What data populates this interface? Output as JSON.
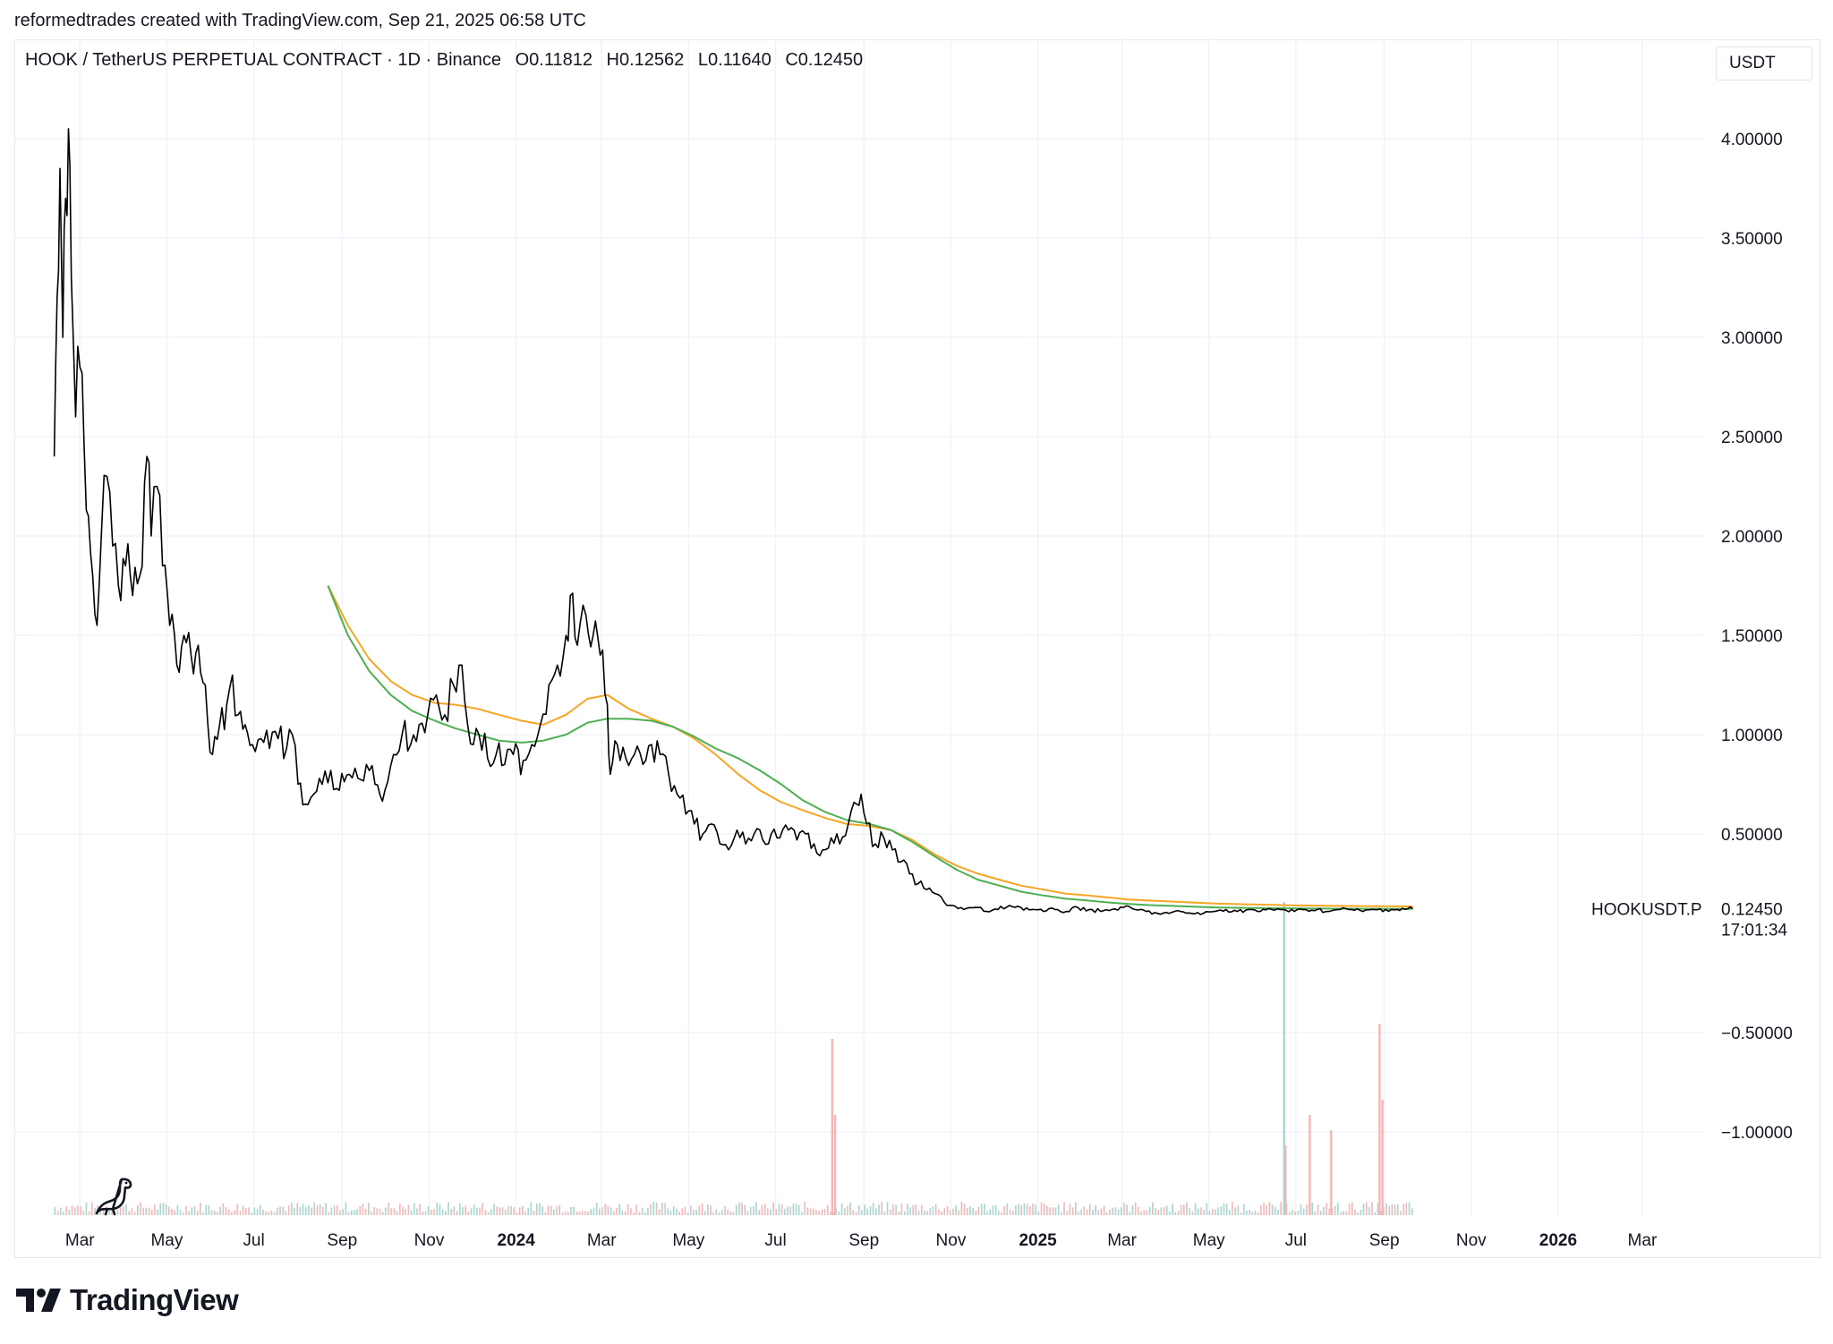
{
  "header": {
    "attribution": "reformedtrades created with TradingView.com, Sep 21, 2025 06:58 UTC"
  },
  "legend": {
    "symbol": "HOOK / TetherUS PERPETUAL CONTRACT · 1D · Binance",
    "open": "O0.11812",
    "high": "H0.12562",
    "low": "L0.11640",
    "close": "C0.12450"
  },
  "toolbar": {
    "currency": "USDT"
  },
  "footer": {
    "brand": "TradingView"
  },
  "colors": {
    "price": "#000000",
    "ma_orange": "#f5a623",
    "ma_green": "#4caf50",
    "grid": "#f0f3fa",
    "volume_up": "#a5d6cf",
    "volume_down": "#f7b6b6"
  },
  "chart_data": {
    "type": "line",
    "series": [
      {
        "name": "HOOKUSDT.P"
      }
    ],
    "price_label": {
      "symbol": "HOOKUSDT.P",
      "value": "0.12450",
      "countdown": "17:01:34"
    },
    "y_ticks": [
      "4.00000",
      "3.50000",
      "3.00000",
      "2.50000",
      "2.00000",
      "1.50000",
      "1.00000",
      "0.50000",
      "−0.50000",
      "−1.00000"
    ],
    "y_tick_values": [
      4.0,
      3.5,
      3.0,
      2.5,
      2.0,
      1.5,
      1.0,
      0.5,
      -0.5,
      -1.0
    ],
    "ylim": [
      -1.45,
      4.5
    ],
    "x_ticks": [
      {
        "label": "Mar",
        "t": "2023-03-01",
        "bold": false
      },
      {
        "label": "May",
        "t": "2023-05-01",
        "bold": false
      },
      {
        "label": "Jul",
        "t": "2023-07-01",
        "bold": false
      },
      {
        "label": "Sep",
        "t": "2023-09-01",
        "bold": false
      },
      {
        "label": "Nov",
        "t": "2023-11-01",
        "bold": false
      },
      {
        "label": "2024",
        "t": "2024-01-01",
        "bold": true
      },
      {
        "label": "Mar",
        "t": "2024-03-01",
        "bold": false
      },
      {
        "label": "May",
        "t": "2024-05-01",
        "bold": false
      },
      {
        "label": "Jul",
        "t": "2024-07-01",
        "bold": false
      },
      {
        "label": "Sep",
        "t": "2024-09-01",
        "bold": false
      },
      {
        "label": "Nov",
        "t": "2024-11-01",
        "bold": false
      },
      {
        "label": "2025",
        "t": "2025-01-01",
        "bold": true
      },
      {
        "label": "Mar",
        "t": "2025-03-01",
        "bold": false
      },
      {
        "label": "May",
        "t": "2025-05-01",
        "bold": false
      },
      {
        "label": "Jul",
        "t": "2025-07-01",
        "bold": false
      },
      {
        "label": "Sep",
        "t": "2025-09-01",
        "bold": false
      },
      {
        "label": "Nov",
        "t": "2025-11-01",
        "bold": false
      },
      {
        "label": "2026",
        "t": "2026-01-01",
        "bold": true
      },
      {
        "label": "Mar",
        "t": "2026-03-01",
        "bold": false
      }
    ],
    "price": [
      [
        "2023-02-11",
        2.4
      ],
      [
        "2023-02-13",
        3.2
      ],
      [
        "2023-02-15",
        3.85
      ],
      [
        "2023-02-17",
        3.0
      ],
      [
        "2023-02-19",
        3.7
      ],
      [
        "2023-02-21",
        4.05
      ],
      [
        "2023-02-23",
        3.3
      ],
      [
        "2023-02-26",
        2.6
      ],
      [
        "2023-03-01",
        2.85
      ],
      [
        "2023-03-04",
        2.45
      ],
      [
        "2023-03-07",
        2.1
      ],
      [
        "2023-03-10",
        1.8
      ],
      [
        "2023-03-13",
        1.55
      ],
      [
        "2023-03-16",
        2.0
      ],
      [
        "2023-03-20",
        2.3
      ],
      [
        "2023-03-24",
        1.95
      ],
      [
        "2023-03-28",
        1.75
      ],
      [
        "2023-04-02",
        1.85
      ],
      [
        "2023-04-07",
        1.7
      ],
      [
        "2023-04-12",
        1.8
      ],
      [
        "2023-04-17",
        2.4
      ],
      [
        "2023-04-20",
        2.0
      ],
      [
        "2023-04-24",
        2.25
      ],
      [
        "2023-04-28",
        1.85
      ],
      [
        "2023-05-03",
        1.55
      ],
      [
        "2023-05-08",
        1.35
      ],
      [
        "2023-05-13",
        1.5
      ],
      [
        "2023-05-18",
        1.4
      ],
      [
        "2023-05-23",
        1.45
      ],
      [
        "2023-05-28",
        1.25
      ],
      [
        "2023-06-02",
        0.9
      ],
      [
        "2023-06-07",
        1.05
      ],
      [
        "2023-06-12",
        1.15
      ],
      [
        "2023-06-16",
        1.3
      ],
      [
        "2023-06-20",
        1.1
      ],
      [
        "2023-06-25",
        1.05
      ],
      [
        "2023-06-30",
        0.95
      ],
      [
        "2023-07-06",
        0.98
      ],
      [
        "2023-07-12",
        0.93
      ],
      [
        "2023-07-18",
        0.98
      ],
      [
        "2023-07-24",
        0.93
      ],
      [
        "2023-07-28",
        1.0
      ],
      [
        "2023-08-01",
        0.75
      ],
      [
        "2023-08-06",
        0.65
      ],
      [
        "2023-08-12",
        0.7
      ],
      [
        "2023-08-18",
        0.75
      ],
      [
        "2023-08-24",
        0.82
      ],
      [
        "2023-08-30",
        0.72
      ],
      [
        "2023-09-06",
        0.8
      ],
      [
        "2023-09-12",
        0.78
      ],
      [
        "2023-09-18",
        0.85
      ],
      [
        "2023-09-24",
        0.75
      ],
      [
        "2023-10-01",
        0.72
      ],
      [
        "2023-10-07",
        0.9
      ],
      [
        "2023-10-13",
        1.0
      ],
      [
        "2023-10-19",
        0.95
      ],
      [
        "2023-10-25",
        1.05
      ],
      [
        "2023-10-31",
        1.1
      ],
      [
        "2023-11-06",
        1.2
      ],
      [
        "2023-11-12",
        1.1
      ],
      [
        "2023-11-18",
        1.25
      ],
      [
        "2023-11-24",
        1.35
      ],
      [
        "2023-11-28",
        1.05
      ],
      [
        "2023-12-02",
        0.95
      ],
      [
        "2023-12-06",
        1.0
      ],
      [
        "2023-12-12",
        0.88
      ],
      [
        "2023-12-18",
        0.9
      ],
      [
        "2023-12-24",
        0.85
      ],
      [
        "2023-12-30",
        0.9
      ],
      [
        "2024-01-06",
        0.87
      ],
      [
        "2024-01-12",
        0.95
      ],
      [
        "2024-01-18",
        1.05
      ],
      [
        "2024-01-24",
        1.25
      ],
      [
        "2024-01-30",
        1.35
      ],
      [
        "2024-02-05",
        1.5
      ],
      [
        "2024-02-08",
        1.7
      ],
      [
        "2024-02-13",
        1.45
      ],
      [
        "2024-02-19",
        1.6
      ],
      [
        "2024-02-24",
        1.5
      ],
      [
        "2024-02-29",
        1.4
      ],
      [
        "2024-03-05",
        1.15
      ],
      [
        "2024-03-07",
        0.8
      ],
      [
        "2024-03-12",
        0.95
      ],
      [
        "2024-03-18",
        0.88
      ],
      [
        "2024-03-24",
        0.9
      ],
      [
        "2024-03-30",
        0.85
      ],
      [
        "2024-04-05",
        0.95
      ],
      [
        "2024-04-11",
        0.9
      ],
      [
        "2024-04-17",
        0.8
      ],
      [
        "2024-04-23",
        0.7
      ],
      [
        "2024-04-29",
        0.6
      ],
      [
        "2024-05-05",
        0.55
      ],
      [
        "2024-05-11",
        0.5
      ],
      [
        "2024-05-17",
        0.55
      ],
      [
        "2024-05-23",
        0.45
      ],
      [
        "2024-05-29",
        0.42
      ],
      [
        "2024-06-04",
        0.52
      ],
      [
        "2024-06-10",
        0.45
      ],
      [
        "2024-06-16",
        0.5
      ],
      [
        "2024-06-22",
        0.47
      ],
      [
        "2024-06-28",
        0.5
      ],
      [
        "2024-07-04",
        0.48
      ],
      [
        "2024-07-10",
        0.52
      ],
      [
        "2024-07-16",
        0.47
      ],
      [
        "2024-07-22",
        0.5
      ],
      [
        "2024-07-28",
        0.45
      ],
      [
        "2024-08-03",
        0.42
      ],
      [
        "2024-08-09",
        0.48
      ],
      [
        "2024-08-15",
        0.45
      ],
      [
        "2024-08-21",
        0.55
      ],
      [
        "2024-08-27",
        0.65
      ],
      [
        "2024-08-30",
        0.7
      ],
      [
        "2024-09-03",
        0.55
      ],
      [
        "2024-09-09",
        0.45
      ],
      [
        "2024-09-15",
        0.48
      ],
      [
        "2024-09-21",
        0.42
      ],
      [
        "2024-09-27",
        0.36
      ],
      [
        "2024-10-03",
        0.3
      ],
      [
        "2024-10-09",
        0.25
      ],
      [
        "2024-10-15",
        0.22
      ],
      [
        "2024-10-21",
        0.2
      ],
      [
        "2024-10-27",
        0.16
      ],
      [
        "2024-11-02",
        0.14
      ],
      [
        "2024-11-10",
        0.12
      ],
      [
        "2024-11-18",
        0.13
      ],
      [
        "2024-11-26",
        0.11
      ],
      [
        "2024-12-04",
        0.12
      ],
      [
        "2024-12-12",
        0.14
      ],
      [
        "2024-12-20",
        0.13
      ],
      [
        "2024-12-28",
        0.12
      ],
      [
        "2025-01-05",
        0.11
      ],
      [
        "2025-01-13",
        0.12
      ],
      [
        "2025-01-21",
        0.11
      ],
      [
        "2025-01-29",
        0.13
      ],
      [
        "2025-02-06",
        0.12
      ],
      [
        "2025-02-14",
        0.11
      ],
      [
        "2025-02-22",
        0.12
      ],
      [
        "2025-03-02",
        0.13
      ],
      [
        "2025-03-10",
        0.12
      ],
      [
        "2025-03-18",
        0.11
      ],
      [
        "2025-03-26",
        0.1
      ],
      [
        "2025-04-03",
        0.1
      ],
      [
        "2025-04-11",
        0.11
      ],
      [
        "2025-04-19",
        0.1
      ],
      [
        "2025-04-27",
        0.1
      ],
      [
        "2025-05-05",
        0.11
      ],
      [
        "2025-05-13",
        0.12
      ],
      [
        "2025-05-21",
        0.11
      ],
      [
        "2025-05-29",
        0.12
      ],
      [
        "2025-06-06",
        0.11
      ],
      [
        "2025-06-14",
        0.12
      ],
      [
        "2025-06-22",
        0.12
      ],
      [
        "2025-06-30",
        0.11
      ],
      [
        "2025-07-08",
        0.12
      ],
      [
        "2025-07-16",
        0.12
      ],
      [
        "2025-07-24",
        0.11
      ],
      [
        "2025-08-01",
        0.12
      ],
      [
        "2025-08-09",
        0.12
      ],
      [
        "2025-08-17",
        0.11
      ],
      [
        "2025-08-25",
        0.12
      ],
      [
        "2025-09-02",
        0.12
      ],
      [
        "2025-09-10",
        0.12
      ],
      [
        "2025-09-21",
        0.1245
      ]
    ],
    "ma_orange": [
      [
        "2023-08-22",
        1.75
      ],
      [
        "2023-09-05",
        1.55
      ],
      [
        "2023-09-20",
        1.38
      ],
      [
        "2023-10-05",
        1.27
      ],
      [
        "2023-10-20",
        1.2
      ],
      [
        "2023-11-05",
        1.16
      ],
      [
        "2023-11-20",
        1.15
      ],
      [
        "2023-12-05",
        1.13
      ],
      [
        "2023-12-20",
        1.1
      ],
      [
        "2024-01-05",
        1.07
      ],
      [
        "2024-01-20",
        1.05
      ],
      [
        "2024-02-05",
        1.1
      ],
      [
        "2024-02-20",
        1.18
      ],
      [
        "2024-03-05",
        1.2
      ],
      [
        "2024-03-20",
        1.13
      ],
      [
        "2024-04-05",
        1.08
      ],
      [
        "2024-04-20",
        1.04
      ],
      [
        "2024-05-05",
        0.98
      ],
      [
        "2024-05-20",
        0.9
      ],
      [
        "2024-06-05",
        0.8
      ],
      [
        "2024-06-20",
        0.72
      ],
      [
        "2024-07-05",
        0.66
      ],
      [
        "2024-07-20",
        0.62
      ],
      [
        "2024-08-05",
        0.58
      ],
      [
        "2024-08-20",
        0.55
      ],
      [
        "2024-09-05",
        0.54
      ],
      [
        "2024-09-20",
        0.52
      ],
      [
        "2024-10-05",
        0.47
      ],
      [
        "2024-10-20",
        0.4
      ],
      [
        "2024-11-05",
        0.34
      ],
      [
        "2024-11-20",
        0.3
      ],
      [
        "2024-12-05",
        0.27
      ],
      [
        "2024-12-20",
        0.24
      ],
      [
        "2025-01-05",
        0.22
      ],
      [
        "2025-01-20",
        0.2
      ],
      [
        "2025-02-05",
        0.19
      ],
      [
        "2025-02-20",
        0.18
      ],
      [
        "2025-03-05",
        0.17
      ],
      [
        "2025-03-20",
        0.165
      ],
      [
        "2025-04-05",
        0.16
      ],
      [
        "2025-04-20",
        0.155
      ],
      [
        "2025-05-05",
        0.15
      ],
      [
        "2025-06-01",
        0.145
      ],
      [
        "2025-07-01",
        0.14
      ],
      [
        "2025-08-01",
        0.138
      ],
      [
        "2025-09-21",
        0.135
      ]
    ],
    "ma_green": [
      [
        "2023-08-22",
        1.75
      ],
      [
        "2023-09-05",
        1.5
      ],
      [
        "2023-09-20",
        1.32
      ],
      [
        "2023-10-05",
        1.2
      ],
      [
        "2023-10-20",
        1.12
      ],
      [
        "2023-11-05",
        1.07
      ],
      [
        "2023-11-20",
        1.03
      ],
      [
        "2023-12-05",
        1.0
      ],
      [
        "2023-12-20",
        0.97
      ],
      [
        "2024-01-05",
        0.96
      ],
      [
        "2024-01-20",
        0.97
      ],
      [
        "2024-02-05",
        1.0
      ],
      [
        "2024-02-20",
        1.06
      ],
      [
        "2024-03-05",
        1.08
      ],
      [
        "2024-03-20",
        1.08
      ],
      [
        "2024-04-05",
        1.07
      ],
      [
        "2024-04-20",
        1.04
      ],
      [
        "2024-05-05",
        0.99
      ],
      [
        "2024-05-20",
        0.93
      ],
      [
        "2024-06-05",
        0.88
      ],
      [
        "2024-06-20",
        0.82
      ],
      [
        "2024-07-05",
        0.75
      ],
      [
        "2024-07-20",
        0.67
      ],
      [
        "2024-08-05",
        0.61
      ],
      [
        "2024-08-20",
        0.57
      ],
      [
        "2024-09-05",
        0.55
      ],
      [
        "2024-09-20",
        0.52
      ],
      [
        "2024-10-05",
        0.46
      ],
      [
        "2024-10-20",
        0.39
      ],
      [
        "2024-11-05",
        0.32
      ],
      [
        "2024-11-20",
        0.27
      ],
      [
        "2024-12-05",
        0.24
      ],
      [
        "2024-12-20",
        0.21
      ],
      [
        "2025-01-05",
        0.19
      ],
      [
        "2025-01-20",
        0.175
      ],
      [
        "2025-02-05",
        0.165
      ],
      [
        "2025-02-20",
        0.155
      ],
      [
        "2025-03-05",
        0.148
      ],
      [
        "2025-03-20",
        0.142
      ],
      [
        "2025-04-05",
        0.138
      ],
      [
        "2025-04-20",
        0.134
      ],
      [
        "2025-05-05",
        0.13
      ],
      [
        "2025-06-01",
        0.127
      ],
      [
        "2025-07-01",
        0.125
      ],
      [
        "2025-08-01",
        0.124
      ],
      [
        "2025-09-21",
        0.123
      ]
    ],
    "volume_spikes": [
      [
        "2024-08-09",
        0.55
      ],
      [
        "2024-08-11",
        0.3
      ],
      [
        "2025-06-22",
        1.0
      ],
      [
        "2025-06-23",
        0.2
      ],
      [
        "2025-08-28",
        0.6
      ],
      [
        "2025-08-30",
        0.35
      ],
      [
        "2025-07-10",
        0.3
      ],
      [
        "2025-07-25",
        0.25
      ]
    ]
  }
}
